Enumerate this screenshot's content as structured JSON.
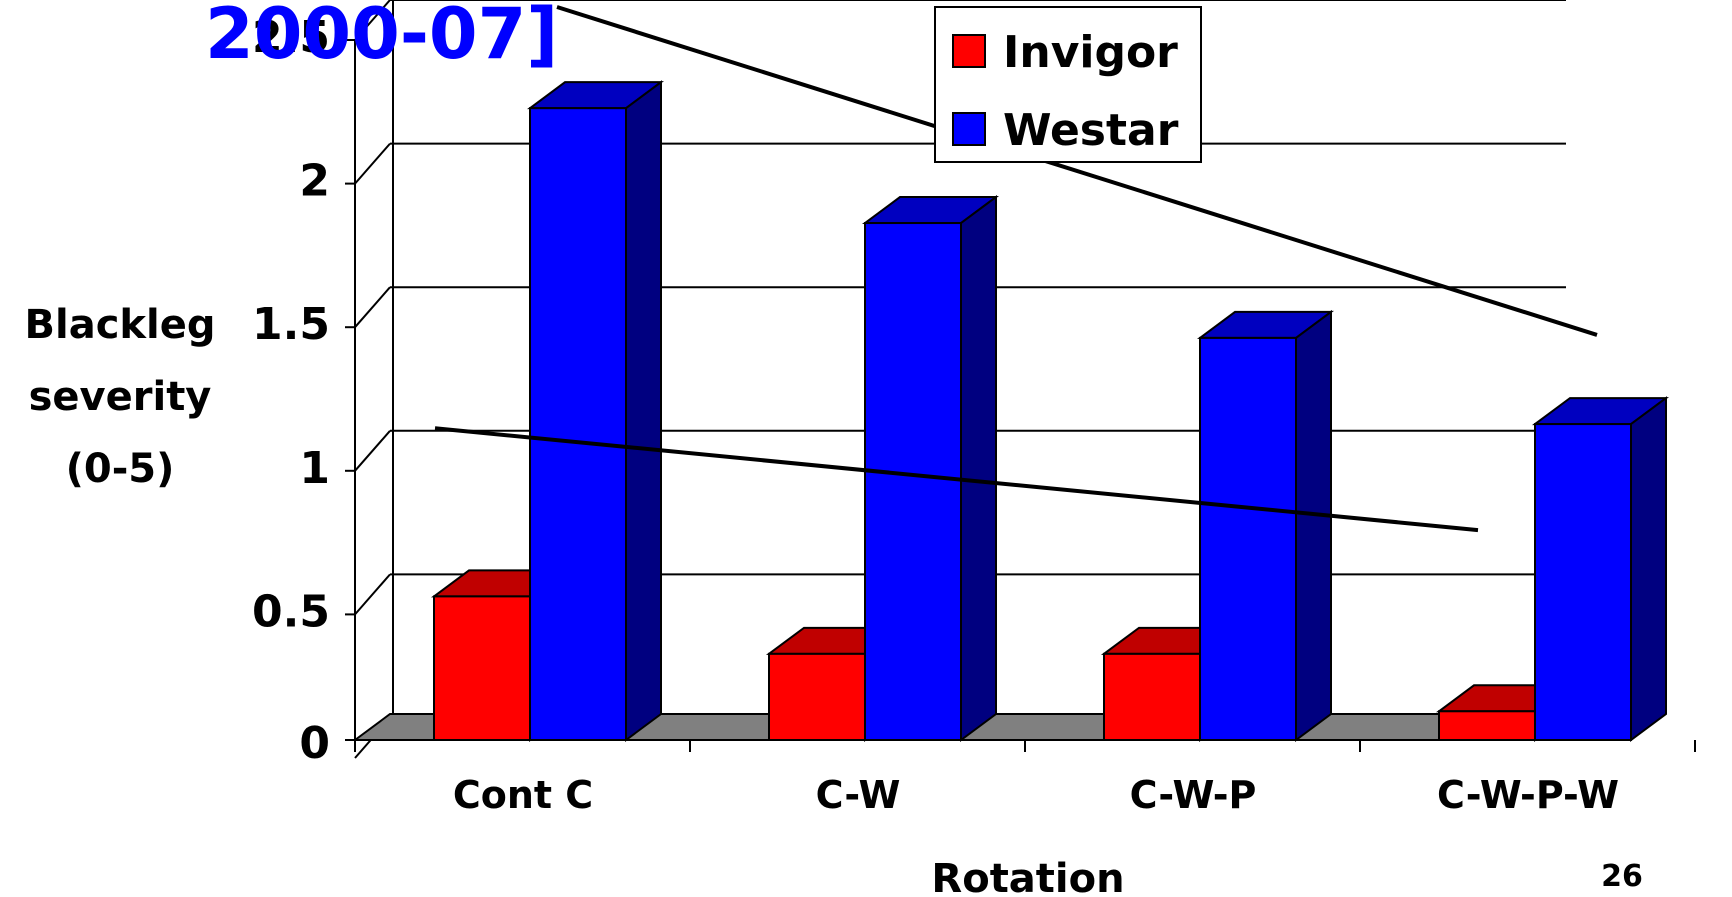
{
  "slide": {
    "title_fragment": "2000-07]",
    "page_number": "26"
  },
  "chart_data": {
    "type": "bar",
    "style": "3d-clustered-column",
    "categories": [
      "Cont C",
      "C-W",
      "C-W-P",
      "C-W-P-W"
    ],
    "series": [
      {
        "name": "Invigor",
        "values": [
          0.5,
          0.3,
          0.3,
          0.1
        ],
        "color": "#ff0000"
      },
      {
        "name": "Westar",
        "values": [
          2.2,
          1.8,
          1.4,
          1.1
        ],
        "color": "#0000ff"
      }
    ],
    "trendlines": [
      {
        "series": "Invigor",
        "from": [
          "Cont C",
          0.8
        ],
        "to": [
          "C-W-P-W",
          0.4
        ]
      },
      {
        "series": "Westar",
        "from": [
          "Cont C",
          2.5
        ],
        "to": [
          "C-W-P-W",
          1.4
        ]
      }
    ],
    "xlabel": "Rotation",
    "ylabel": [
      "Blackleg",
      "severity",
      "(0-5)"
    ],
    "ylim": [
      0,
      2.5
    ],
    "yticks": [
      "0",
      "0.5",
      "1",
      "1.5",
      "2",
      "2.5"
    ],
    "grid": true,
    "legend": "top-center",
    "colors": {
      "invigor_front": "#ff0000",
      "invigor_top": "#c00000",
      "invigor_side": "#800000",
      "westar_front": "#0000ff",
      "westar_top": "#0000c0",
      "westar_side": "#000080",
      "floor": "#808080",
      "title": "#0000ff"
    }
  }
}
